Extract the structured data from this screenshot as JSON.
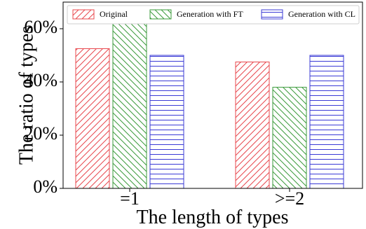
{
  "chart_data": {
    "type": "bar",
    "title": "",
    "xlabel": "The length of types",
    "ylabel": "The ratio of types",
    "categories": [
      "=1",
      ">=2"
    ],
    "series": [
      {
        "name": "Original",
        "values": [
          52.5,
          47.5
        ],
        "color": "#e8484e",
        "hatch": "diagonal-up"
      },
      {
        "name": "Generation with FT",
        "values": [
          62.0,
          38.0
        ],
        "color": "#3a9a3a",
        "hatch": "diagonal-down"
      },
      {
        "name": "Generation with CL",
        "values": [
          50.0,
          50.0
        ],
        "color": "#3b3bd6",
        "hatch": "horizontal"
      }
    ],
    "ylim": [
      0,
      70
    ],
    "yticks": [
      0,
      20,
      40,
      60
    ],
    "ytick_labels": [
      "0%",
      "20%",
      "40%",
      "60%"
    ],
    "legend_position": "top",
    "grid": false
  }
}
